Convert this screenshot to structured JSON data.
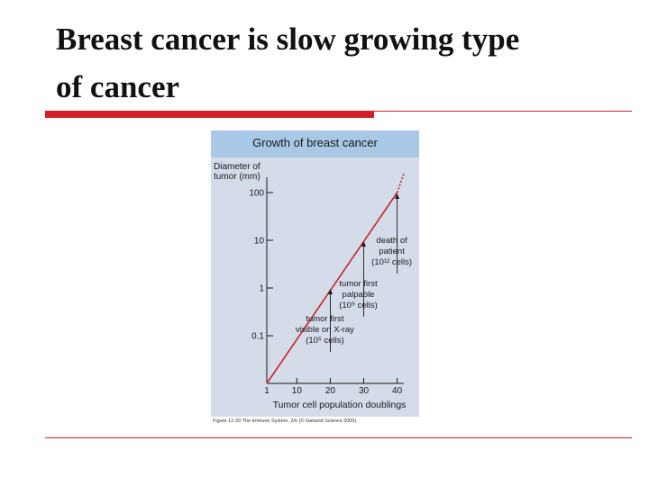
{
  "slide": {
    "title_line1": "Breast cancer is slow growing type",
    "title_line2": "of cancer"
  },
  "figure": {
    "caption": "Figure 12-20  The Immune System, 2/e (© Garland Science 2005)"
  },
  "colors": {
    "accent_red": "#d21f2a",
    "panel_bg": "#d4dbe9",
    "panel_header": "#a9c8e6",
    "series_line": "#c8242c"
  },
  "chart_data": {
    "type": "line",
    "title": "Growth of breast cancer",
    "ylabel_lines": [
      "Diameter of",
      "tumor (mm)"
    ],
    "xlabel": "Tumor cell population doublings",
    "y_scale": "log",
    "yticks": [
      0.1,
      1,
      10,
      100
    ],
    "ytick_labels": [
      "0.1",
      "1",
      "10",
      "100"
    ],
    "xticks": [
      1,
      10,
      20,
      30,
      40
    ],
    "xtick_labels": [
      "1",
      "10",
      "20",
      "30",
      "40"
    ],
    "xlim": [
      1,
      42
    ],
    "ylim": [
      0.01,
      300
    ],
    "series": [
      {
        "style": "solid",
        "x": [
          1,
          40
        ],
        "y": [
          0.01,
          100
        ]
      },
      {
        "style": "dotted",
        "x": [
          40,
          42
        ],
        "y": [
          100,
          250
        ]
      }
    ],
    "annotations": [
      {
        "lines": [
          "death of",
          "patient",
          "(10¹² cells)"
        ],
        "x": 40,
        "y": 100
      },
      {
        "lines": [
          "tumor first",
          "palpable",
          "(10⁹ cells)"
        ],
        "x": 30,
        "y": 10
      },
      {
        "lines": [
          "tumor first",
          "visible on X-ray",
          "(10⁵ cells)"
        ],
        "x": 20,
        "y": 1
      }
    ],
    "grid": false,
    "legend": "none"
  }
}
